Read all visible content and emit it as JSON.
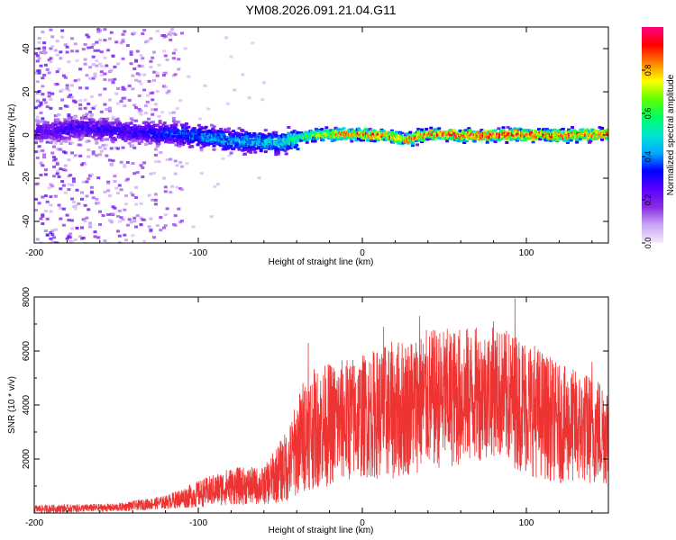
{
  "figure_title": "YM08.2026.091.21.04.G11",
  "colors": {
    "snr_line": "#ee3333",
    "axes": "#000000",
    "colormap": [
      "#f6eaff",
      "#c9a6f5",
      "#8a2be2",
      "#5a00ff",
      "#0000ff",
      "#00aaff",
      "#00e5d0",
      "#00ff60",
      "#60ff00",
      "#ffff00",
      "#ff8000",
      "#ff0000",
      "#ff0080"
    ]
  },
  "chart_data": [
    {
      "type": "heatmap",
      "title": "",
      "xlabel": "Height of straight line (km)",
      "ylabel": "Frequency (Hz)",
      "xlim": [
        -200,
        150
      ],
      "ylim": [
        -50,
        50
      ],
      "xticks": [
        -200,
        -100,
        0,
        100
      ],
      "yticks": [
        -40,
        -20,
        0,
        20,
        40
      ],
      "colorbar": {
        "label": "Normalized spectral amplitude",
        "range": [
          0,
          1
        ],
        "ticks": [
          "0.0",
          "0.2",
          "0.4",
          "0.6",
          "0.8"
        ]
      },
      "ridge": {
        "description": "dominant frequency ridge",
        "x": [
          -200,
          -170,
          -140,
          -110,
          -80,
          -50,
          -30,
          -10,
          10,
          25,
          40,
          60,
          80,
          100,
          120,
          150
        ],
        "y": [
          2,
          4,
          2,
          1,
          -2,
          -3,
          1,
          1,
          0.5,
          -1.5,
          1,
          0.5,
          0.5,
          1,
          0.5,
          1
        ],
        "amplitude": [
          0.25,
          0.3,
          0.3,
          0.4,
          0.45,
          0.5,
          0.7,
          0.85,
          0.9,
          0.85,
          0.9,
          0.95,
          0.95,
          0.92,
          0.9,
          0.9
        ]
      },
      "noise_region_x": [
        -200,
        -110
      ]
    },
    {
      "type": "line",
      "title": "",
      "xlabel": "Height of straight line (km)",
      "ylabel": "SNR (10 * v/v)",
      "xlim": [
        -200,
        150
      ],
      "ylim": [
        0,
        8000
      ],
      "xticks": [
        -200,
        -100,
        0,
        100
      ],
      "yticks": [
        2000,
        4000,
        6000,
        8000
      ],
      "series": [
        {
          "name": "SNR",
          "envelope_x": [
            -200,
            -150,
            -120,
            -100,
            -80,
            -60,
            -45,
            -35,
            -20,
            0,
            20,
            40,
            60,
            80,
            100,
            120,
            150
          ],
          "envelope_mean": [
            150,
            200,
            400,
            700,
            1000,
            1000,
            1800,
            3000,
            3300,
            3600,
            3800,
            4200,
            4300,
            4500,
            4000,
            3300,
            3000
          ],
          "envelope_spread": [
            150,
            150,
            250,
            500,
            700,
            700,
            1400,
            2200,
            2300,
            2300,
            2600,
            2600,
            2600,
            2400,
            2600,
            2200,
            2000
          ],
          "peaks": [
            {
              "x": 93,
              "y": 7950
            },
            {
              "x": 35,
              "y": 7300
            },
            {
              "x": 80,
              "y": 7100
            },
            {
              "x": 13,
              "y": 6900
            },
            {
              "x": -33,
              "y": 6300
            },
            {
              "x": 140,
              "y": 5600
            }
          ]
        }
      ]
    }
  ]
}
